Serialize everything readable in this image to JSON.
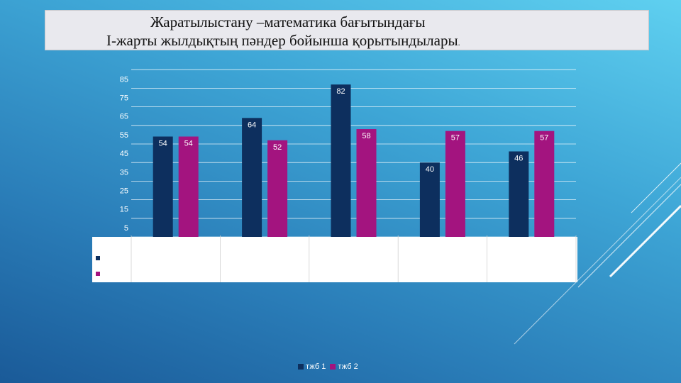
{
  "title": {
    "line1": "Жаратылыстану –математика бағытындағы",
    "line2": "І-жарты жылдықтың пәндер бойынша қорытындылары",
    "line2_suffix": "."
  },
  "chart_data": {
    "type": "bar",
    "categories": [
      "",
      "",
      "",
      "",
      ""
    ],
    "series": [
      {
        "name": "тжб 1",
        "color": "#0d2f5e",
        "values": [
          54,
          64,
          82,
          40,
          46
        ]
      },
      {
        "name": "тжб 2",
        "color": "#a3147f",
        "values": [
          54,
          52,
          58,
          57,
          57
        ]
      }
    ],
    "yticks": [
      5,
      15,
      25,
      35,
      45,
      55,
      65,
      75,
      85
    ],
    "ylim": [
      0,
      90
    ],
    "grid": true,
    "legend_position": "bottom"
  }
}
